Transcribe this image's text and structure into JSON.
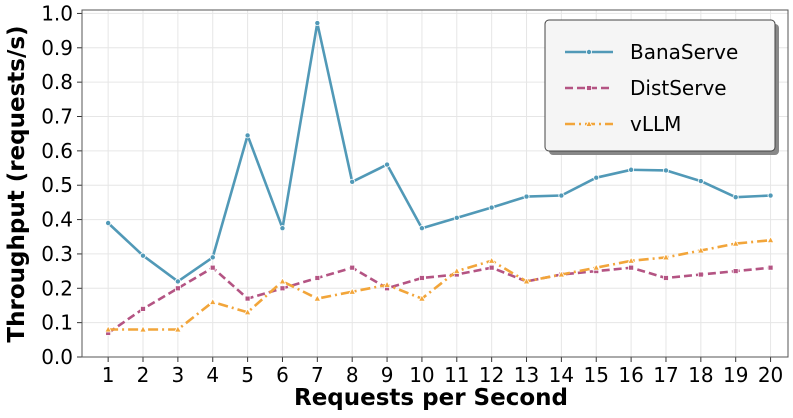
{
  "chart_data": {
    "type": "line",
    "title": "",
    "xlabel": "Requests per Second",
    "ylabel": "Throughput (requests/s)",
    "x": [
      1,
      2,
      3,
      4,
      5,
      6,
      7,
      8,
      9,
      10,
      11,
      12,
      13,
      14,
      15,
      16,
      17,
      18,
      19,
      20
    ],
    "xlim": [
      0.25,
      20.5
    ],
    "ylim": [
      0,
      1.01
    ],
    "yticks": [
      0.0,
      0.1,
      0.2,
      0.3,
      0.4,
      0.5,
      0.6,
      0.7,
      0.8,
      0.9,
      1.0
    ],
    "ytick_labels": [
      "0.0",
      "0.1",
      "0.2",
      "0.3",
      "0.4",
      "0.5",
      "0.6",
      "0.7",
      "0.8",
      "0.9",
      "1.0"
    ],
    "xtick_labels": [
      "1",
      "2",
      "3",
      "4",
      "5",
      "6",
      "7",
      "8",
      "9",
      "10",
      "11",
      "12",
      "13",
      "14",
      "15",
      "16",
      "17",
      "18",
      "19",
      "20"
    ],
    "grid": true,
    "legend_position": "top-right",
    "series": [
      {
        "name": "BanaServe",
        "color": "#5199b7",
        "linestyle": "solid",
        "marker": "circle",
        "values": [
          0.39,
          0.295,
          0.22,
          0.29,
          0.645,
          0.375,
          0.972,
          0.51,
          0.56,
          0.375,
          0.405,
          0.435,
          0.467,
          0.47,
          0.522,
          0.545,
          0.543,
          0.512,
          0.465,
          0.47
        ]
      },
      {
        "name": "DistServe",
        "color": "#b45483",
        "linestyle": "dashed",
        "marker": "square",
        "values": [
          0.07,
          0.14,
          0.2,
          0.26,
          0.17,
          0.2,
          0.23,
          0.26,
          0.2,
          0.23,
          0.24,
          0.26,
          0.22,
          0.24,
          0.25,
          0.26,
          0.23,
          0.24,
          0.25,
          0.26
        ]
      },
      {
        "name": "vLLM",
        "color": "#f2a53a",
        "linestyle": "dashdot",
        "marker": "triangle",
        "values": [
          0.08,
          0.08,
          0.08,
          0.16,
          0.13,
          0.22,
          0.17,
          0.19,
          0.21,
          0.17,
          0.25,
          0.28,
          0.22,
          0.24,
          0.26,
          0.28,
          0.29,
          0.31,
          0.33,
          0.34
        ]
      }
    ]
  }
}
